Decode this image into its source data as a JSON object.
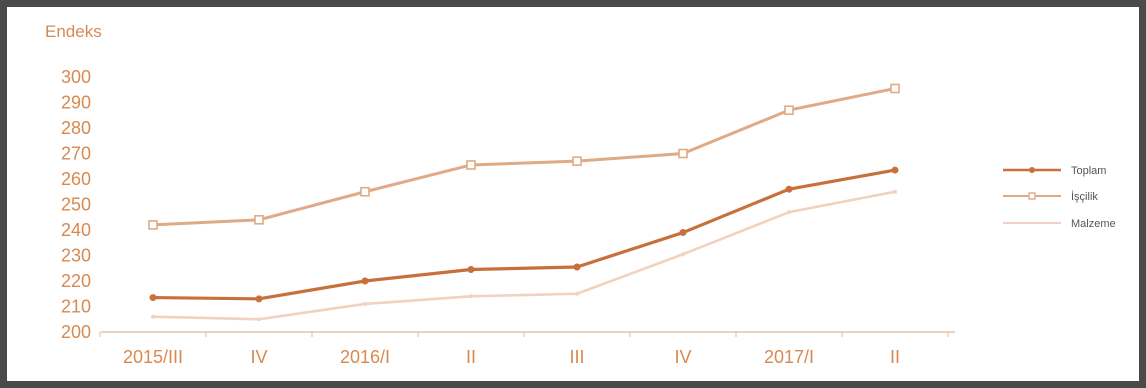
{
  "chart_data": {
    "type": "line",
    "ylabel": "Endeks",
    "xlabel": "",
    "categories": [
      "2015/III",
      "IV",
      "2016/I",
      "II",
      "III",
      "IV",
      "2017/I",
      "II"
    ],
    "ylim": [
      200,
      300
    ],
    "yticks": [
      200,
      210,
      220,
      230,
      240,
      250,
      260,
      270,
      280,
      290,
      300
    ],
    "legend_position": "right",
    "series": [
      {
        "name": "Toplam",
        "color": "#c8703c",
        "values": [
          213.5,
          213,
          220,
          224.5,
          225.5,
          239,
          256,
          263.5
        ]
      },
      {
        "name": "İşçilik",
        "color": "#e0aa86",
        "values": [
          242,
          244,
          255,
          265.5,
          267,
          270,
          287,
          295.5
        ]
      },
      {
        "name": "Malzeme",
        "color": "#f1d2bf",
        "values": [
          206,
          205,
          211,
          214,
          215,
          230.5,
          247,
          255
        ]
      }
    ]
  }
}
